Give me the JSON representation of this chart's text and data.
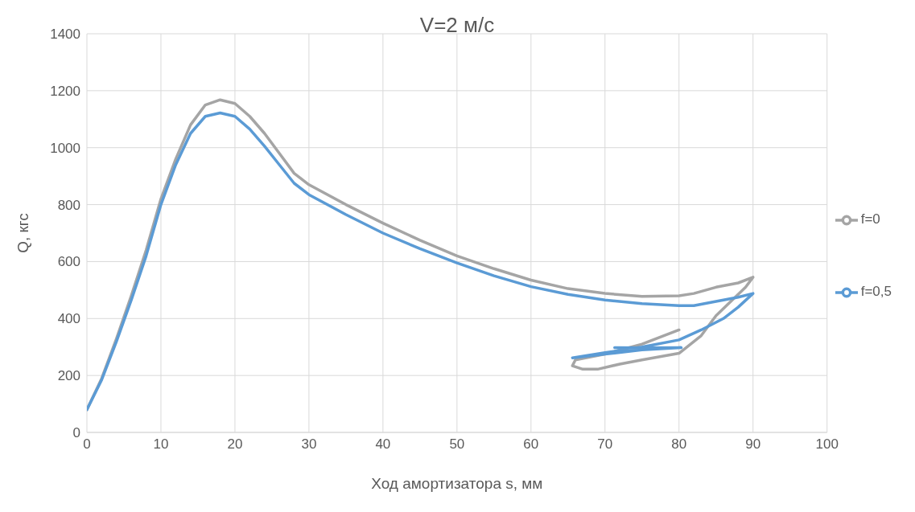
{
  "chart_data": {
    "type": "line",
    "title": "V=2 м/с",
    "xlabel": "Ход амортизатора s, мм",
    "ylabel": "Q, кгс",
    "xlim": [
      0,
      100
    ],
    "xticks": [
      0,
      10,
      20,
      30,
      40,
      50,
      60,
      70,
      80,
      90,
      100
    ],
    "ylim": [
      0,
      1400
    ],
    "yticks": [
      0,
      200,
      400,
      600,
      800,
      1000,
      1200,
      1400
    ],
    "grid": true,
    "legend": "right",
    "marker": "none",
    "line_style": "solid",
    "series": [
      {
        "name": "f=0",
        "color": "#a5a5a5",
        "x": [
          0,
          2,
          4,
          6,
          8,
          10,
          12,
          14,
          16,
          18,
          20,
          22,
          24,
          26,
          28,
          30,
          35,
          40,
          45,
          50,
          55,
          60,
          65,
          70,
          75,
          80,
          82,
          85,
          88,
          90,
          89,
          87,
          85,
          83,
          80,
          75,
          72,
          69,
          67,
          65.6,
          66,
          70,
          75,
          80
        ],
        "values": [
          80,
          190,
          330,
          480,
          640,
          820,
          960,
          1080,
          1150,
          1168,
          1155,
          1110,
          1050,
          980,
          910,
          870,
          800,
          735,
          675,
          620,
          575,
          535,
          505,
          488,
          478,
          480,
          488,
          510,
          525,
          545,
          510,
          460,
          410,
          340,
          278,
          255,
          240,
          222,
          222,
          234,
          255,
          275,
          310,
          360
        ]
      },
      {
        "name": "f=0,5",
        "color": "#5b9bd5",
        "x": [
          0,
          2,
          4,
          6,
          8,
          10,
          12,
          14,
          16,
          18,
          20,
          22,
          24,
          26,
          28,
          30,
          35,
          40,
          45,
          50,
          55,
          60,
          65,
          70,
          75,
          80,
          82,
          85,
          88,
          90,
          88,
          86,
          83,
          80,
          75,
          70,
          65.6,
          70,
          75,
          80.3,
          75,
          71.3
        ],
        "values": [
          80,
          185,
          320,
          465,
          620,
          800,
          940,
          1050,
          1110,
          1122,
          1110,
          1065,
          1005,
          940,
          875,
          835,
          765,
          700,
          645,
          595,
          550,
          512,
          485,
          465,
          452,
          445,
          445,
          460,
          475,
          488,
          440,
          400,
          360,
          325,
          300,
          280,
          262,
          275,
          290,
          298,
          297,
          298
        ]
      }
    ]
  }
}
